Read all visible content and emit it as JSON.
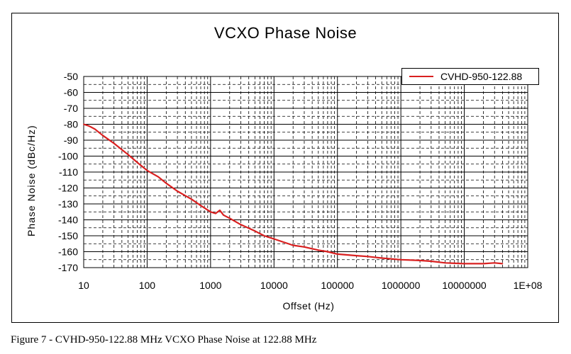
{
  "chart_data": {
    "type": "line",
    "title": "VCXO Phase Noise",
    "xlabel": "Offset (Hz)",
    "ylabel": "Phase Noise (dBc/Hz)",
    "x_scale": "log",
    "xlim": [
      10,
      100000000
    ],
    "ylim": [
      -170,
      -50
    ],
    "x_ticks": [
      10,
      100,
      1000,
      10000,
      100000,
      1000000,
      10000000,
      100000000
    ],
    "x_tick_labels": [
      "10",
      "100",
      "1000",
      "10000",
      "100000",
      "1000000",
      "10000000",
      "1E+08"
    ],
    "y_ticks": [
      -50,
      -60,
      -70,
      -80,
      -90,
      -100,
      -110,
      -120,
      -130,
      -140,
      -150,
      -160,
      -170
    ],
    "y_tick_labels": [
      "-50",
      "-60",
      "-70",
      "-80",
      "-90",
      "-100",
      "-110",
      "-120",
      "-130",
      "-140",
      "-150",
      "-160",
      "-170"
    ],
    "grid": true,
    "legend_position": "top-right",
    "series": [
      {
        "name": "CVHD-950-122.88",
        "color": "#d92020",
        "x": [
          10,
          12,
          15,
          20,
          30,
          50,
          70,
          100,
          150,
          200,
          300,
          500,
          700,
          1000,
          1200,
          1400,
          1600,
          2000,
          3000,
          5000,
          7000,
          10000,
          20000,
          30000,
          50000,
          70000,
          100000,
          200000,
          300000,
          500000,
          1000000,
          2000000,
          3000000,
          5000000,
          10000000,
          20000000,
          30000000,
          40000000
        ],
        "y": [
          -80,
          -81,
          -83,
          -87,
          -92,
          -99,
          -104,
          -109,
          -113,
          -117,
          -122,
          -127,
          -131,
          -135,
          -136,
          -134,
          -137,
          -139,
          -143,
          -147,
          -150,
          -152,
          -156,
          -157,
          -159,
          -160,
          -161.5,
          -162.5,
          -163,
          -164,
          -165,
          -165.5,
          -166,
          -167,
          -167.5,
          -167.5,
          -167,
          -167.5
        ]
      }
    ]
  },
  "caption": "Figure 7 - CVHD-950-122.88 MHz  VCXO  Phase Noise at 122.88 MHz"
}
